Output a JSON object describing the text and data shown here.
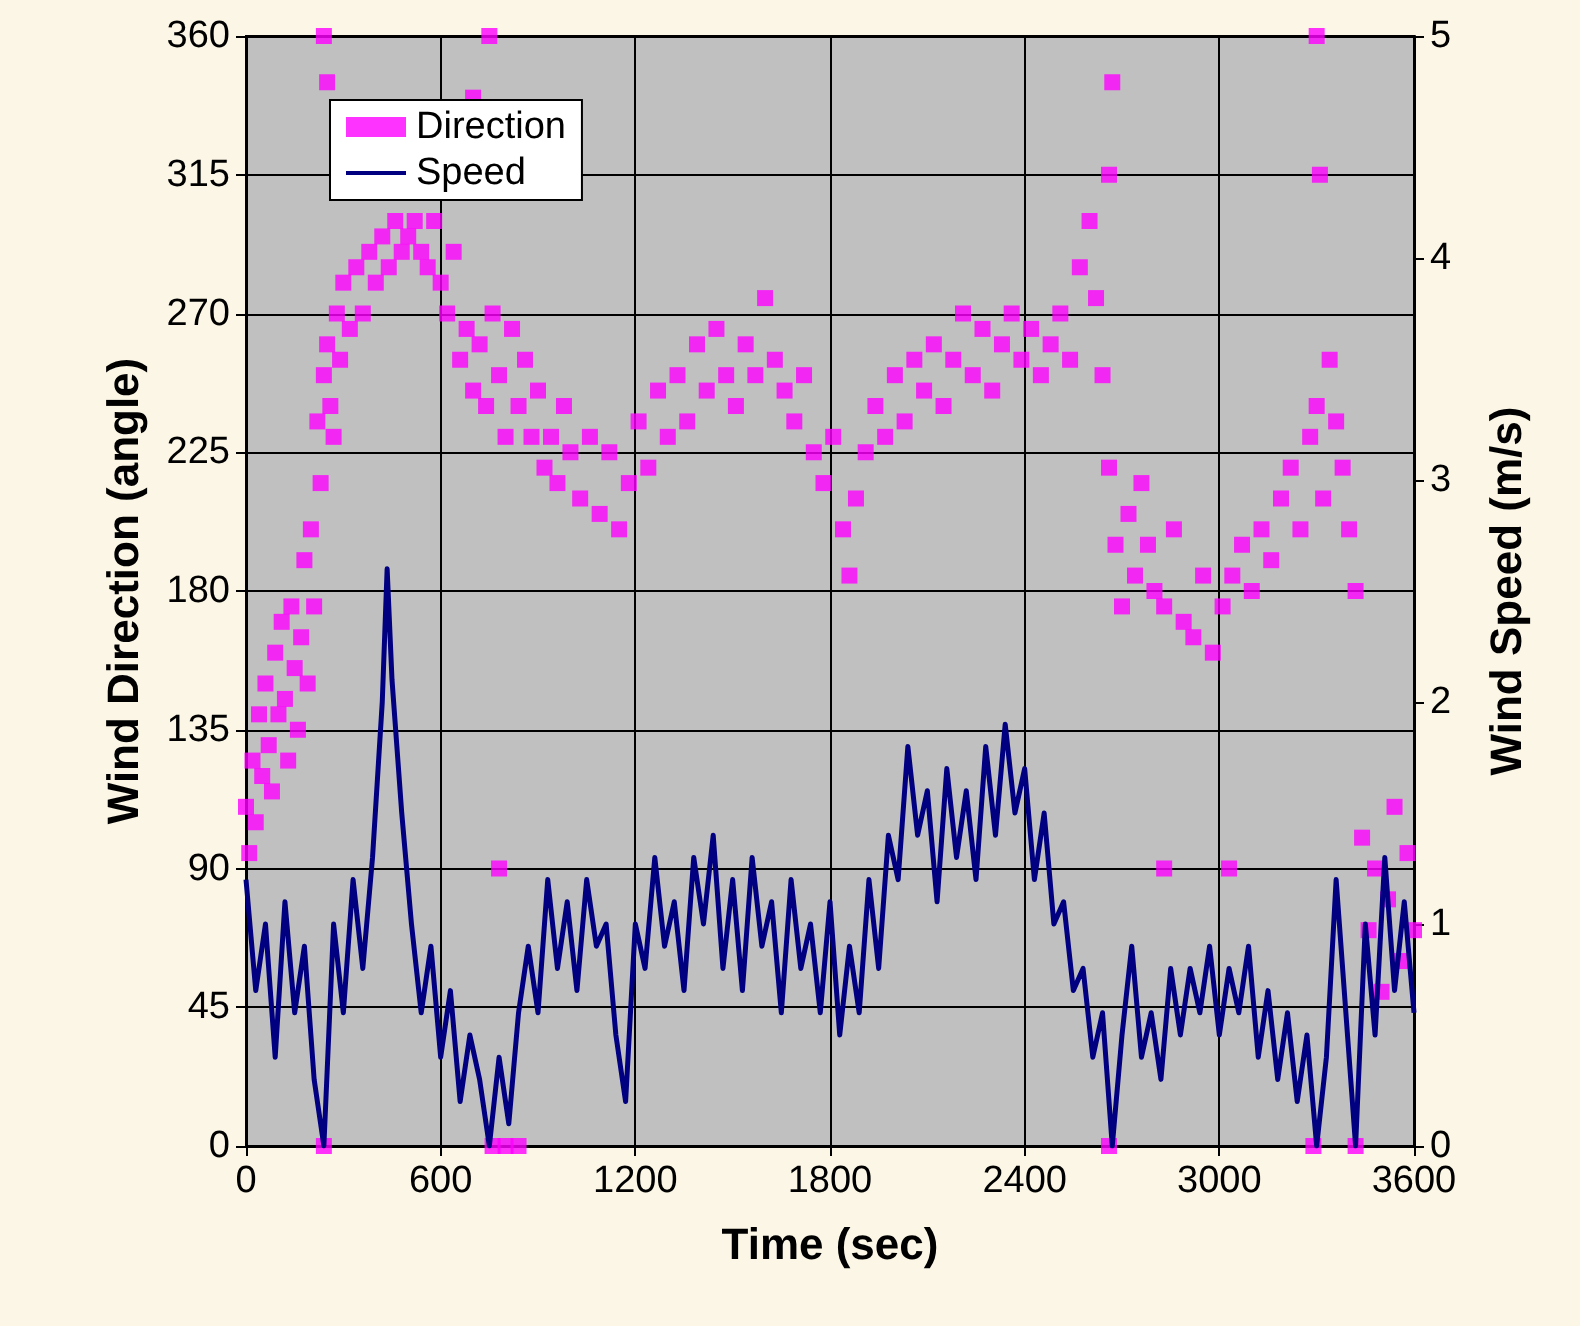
{
  "chart_data": {
    "type": "scatter",
    "xlabel": "Time (sec)",
    "ylabel": "Wind Direction (angle)",
    "y2label": "Wind Speed (m/s)",
    "xlim": [
      0,
      3600
    ],
    "xticks": [
      0,
      600,
      1200,
      1800,
      2400,
      3000,
      3600
    ],
    "ylim": [
      0,
      360
    ],
    "yticks": [
      0,
      45,
      90,
      135,
      180,
      225,
      270,
      315,
      360
    ],
    "y2lim": [
      0,
      5
    ],
    "y2ticks": [
      0,
      1,
      2,
      3,
      4,
      5
    ],
    "grid": true,
    "legend": "top left",
    "series": [
      {
        "name": "Direction",
        "marker": "square",
        "color": "#ff00ff",
        "x": [
          0,
          10,
          20,
          30,
          40,
          50,
          60,
          70,
          80,
          90,
          100,
          110,
          120,
          130,
          140,
          150,
          160,
          170,
          180,
          190,
          200,
          210,
          220,
          230,
          240,
          250,
          260,
          270,
          280,
          290,
          300,
          320,
          340,
          360,
          380,
          400,
          420,
          440,
          460,
          480,
          500,
          520,
          540,
          560,
          580,
          600,
          620,
          640,
          660,
          680,
          700,
          720,
          740,
          760,
          780,
          800,
          820,
          840,
          860,
          880,
          900,
          920,
          940,
          960,
          980,
          1000,
          1030,
          1060,
          1090,
          1120,
          1150,
          1180,
          1210,
          1240,
          1270,
          1300,
          1330,
          1360,
          1390,
          1420,
          1450,
          1480,
          1510,
          1540,
          1570,
          1600,
          1630,
          1660,
          1690,
          1720,
          1750,
          1780,
          1810,
          1840,
          1860,
          1880,
          1910,
          1940,
          1970,
          2000,
          2030,
          2060,
          2090,
          2120,
          2150,
          2180,
          2210,
          2240,
          2270,
          2300,
          2330,
          2360,
          2390,
          2420,
          2450,
          2480,
          2510,
          2540,
          2570,
          2600,
          2620,
          2640,
          2660,
          2680,
          2700,
          2720,
          2740,
          2760,
          2780,
          2800,
          2830,
          2860,
          2890,
          2920,
          2950,
          2980,
          3010,
          3040,
          3070,
          3100,
          3130,
          3160,
          3190,
          3220,
          3250,
          3280,
          3300,
          3320,
          3340,
          3360,
          3380,
          3400,
          3420,
          3440,
          3460,
          3480,
          3500,
          3520,
          3540,
          3560,
          3580,
          3600,
          240,
          250,
          750,
          700,
          240,
          760,
          800,
          840,
          780,
          2660,
          2670,
          2660,
          3300,
          3310,
          3290,
          3420,
          3030,
          2830
        ],
        "values": [
          110,
          95,
          125,
          105,
          140,
          120,
          150,
          130,
          115,
          160,
          140,
          170,
          145,
          125,
          175,
          155,
          135,
          165,
          190,
          150,
          200,
          175,
          235,
          215,
          250,
          260,
          240,
          230,
          270,
          255,
          280,
          265,
          285,
          270,
          290,
          280,
          295,
          285,
          300,
          290,
          295,
          300,
          290,
          285,
          300,
          280,
          270,
          290,
          255,
          265,
          245,
          260,
          240,
          270,
          250,
          230,
          265,
          240,
          255,
          230,
          245,
          220,
          230,
          215,
          240,
          225,
          210,
          230,
          205,
          225,
          200,
          215,
          235,
          220,
          245,
          230,
          250,
          235,
          260,
          245,
          265,
          250,
          240,
          260,
          250,
          275,
          255,
          245,
          235,
          250,
          225,
          215,
          230,
          200,
          185,
          210,
          225,
          240,
          230,
          250,
          235,
          255,
          245,
          260,
          240,
          255,
          270,
          250,
          265,
          245,
          260,
          270,
          255,
          265,
          250,
          260,
          270,
          255,
          285,
          300,
          275,
          250,
          220,
          195,
          175,
          205,
          185,
          215,
          195,
          180,
          175,
          200,
          170,
          165,
          185,
          160,
          175,
          185,
          195,
          180,
          200,
          190,
          210,
          220,
          200,
          230,
          240,
          210,
          255,
          235,
          220,
          200,
          180,
          100,
          70,
          90,
          50,
          80,
          110,
          60,
          95,
          70,
          360,
          345,
          360,
          340,
          0,
          0,
          0,
          0,
          90,
          0,
          345,
          315,
          360,
          315,
          0,
          0,
          90,
          90
        ]
      },
      {
        "name": "Speed",
        "type": "line",
        "axis": "y2",
        "marker": "none",
        "line_style": "solid",
        "color": "#000080",
        "x": [
          0,
          30,
          60,
          90,
          120,
          150,
          180,
          210,
          240,
          270,
          300,
          330,
          360,
          390,
          420,
          435,
          450,
          480,
          510,
          540,
          570,
          600,
          630,
          660,
          690,
          720,
          750,
          780,
          810,
          840,
          870,
          900,
          930,
          960,
          990,
          1020,
          1050,
          1080,
          1110,
          1140,
          1170,
          1200,
          1230,
          1260,
          1290,
          1320,
          1350,
          1380,
          1410,
          1440,
          1470,
          1500,
          1530,
          1560,
          1590,
          1620,
          1650,
          1680,
          1710,
          1740,
          1770,
          1800,
          1830,
          1860,
          1890,
          1920,
          1950,
          1980,
          2010,
          2040,
          2070,
          2100,
          2130,
          2160,
          2190,
          2220,
          2250,
          2280,
          2310,
          2340,
          2370,
          2400,
          2430,
          2460,
          2490,
          2520,
          2550,
          2580,
          2610,
          2640,
          2670,
          2700,
          2730,
          2760,
          2790,
          2820,
          2850,
          2880,
          2910,
          2940,
          2970,
          3000,
          3030,
          3060,
          3090,
          3120,
          3150,
          3180,
          3210,
          3240,
          3270,
          3300,
          3330,
          3360,
          3390,
          3420,
          3450,
          3480,
          3510,
          3540,
          3570,
          3600
        ],
        "values": [
          1.2,
          0.7,
          1.0,
          0.4,
          1.1,
          0.6,
          0.9,
          0.3,
          0.0,
          1.0,
          0.6,
          1.2,
          0.8,
          1.3,
          2.0,
          2.6,
          2.1,
          1.5,
          1.0,
          0.6,
          0.9,
          0.4,
          0.7,
          0.2,
          0.5,
          0.3,
          0.0,
          0.4,
          0.1,
          0.6,
          0.9,
          0.6,
          1.2,
          0.8,
          1.1,
          0.7,
          1.2,
          0.9,
          1.0,
          0.5,
          0.2,
          1.0,
          0.8,
          1.3,
          0.9,
          1.1,
          0.7,
          1.3,
          1.0,
          1.4,
          0.8,
          1.2,
          0.7,
          1.3,
          0.9,
          1.1,
          0.6,
          1.2,
          0.8,
          1.0,
          0.6,
          1.1,
          0.5,
          0.9,
          0.6,
          1.2,
          0.8,
          1.4,
          1.2,
          1.8,
          1.4,
          1.6,
          1.1,
          1.7,
          1.3,
          1.6,
          1.2,
          1.8,
          1.4,
          1.9,
          1.5,
          1.7,
          1.2,
          1.5,
          1.0,
          1.1,
          0.7,
          0.8,
          0.4,
          0.6,
          0.0,
          0.5,
          0.9,
          0.4,
          0.6,
          0.3,
          0.8,
          0.5,
          0.8,
          0.6,
          0.9,
          0.5,
          0.8,
          0.6,
          0.9,
          0.4,
          0.7,
          0.3,
          0.6,
          0.2,
          0.5,
          0.0,
          0.4,
          1.2,
          0.6,
          0.0,
          1.0,
          0.5,
          1.3,
          0.7,
          1.1,
          0.6
        ]
      }
    ]
  }
}
